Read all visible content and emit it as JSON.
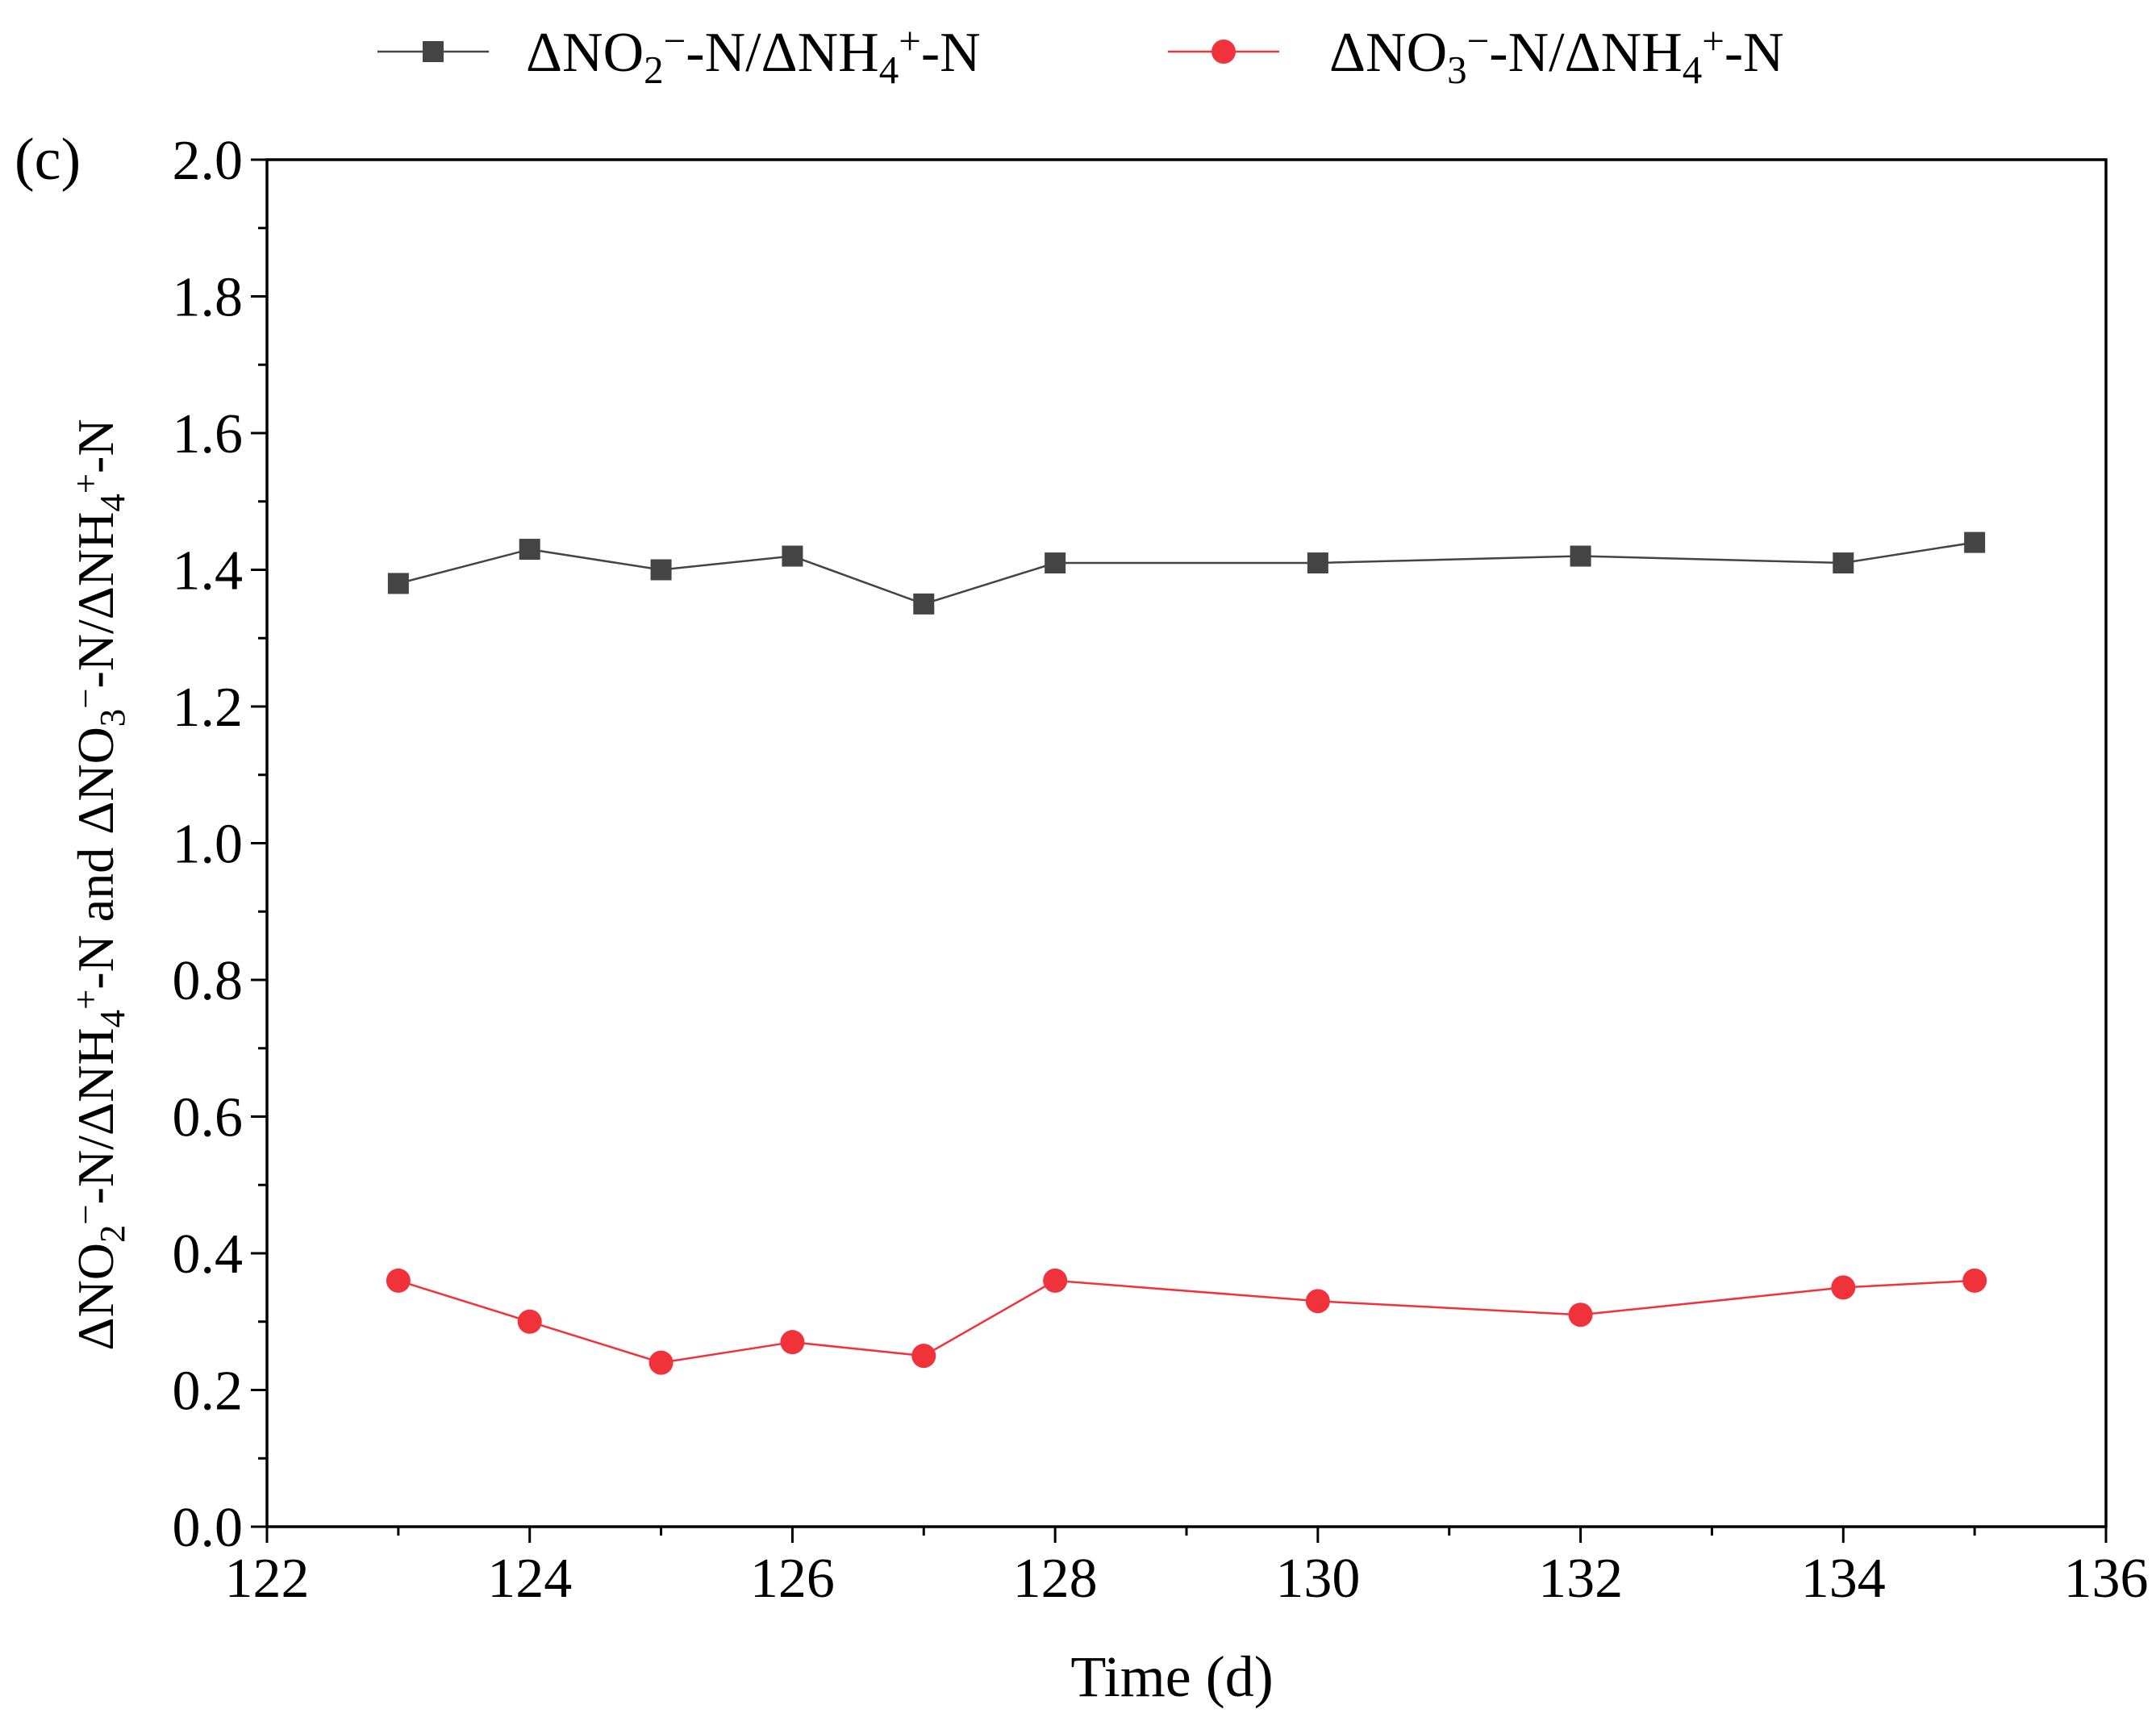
{
  "chart_data": {
    "type": "line",
    "panel_label": "(c)",
    "xlabel": "Time (d)",
    "ylabel": {
      "parts": [
        {
          "t": "ΔNO"
        },
        {
          "t": "2",
          "sub": true
        },
        {
          "t": "−",
          "sup": true
        },
        {
          "t": "-N/ΔNH"
        },
        {
          "t": "4",
          "sub": true
        },
        {
          "t": "+",
          "sup": true
        },
        {
          "t": "-N and ΔNO"
        },
        {
          "t": "3",
          "sub": true
        },
        {
          "t": "−",
          "sup": true
        },
        {
          "t": "-N/ΔNH"
        },
        {
          "t": "4",
          "sub": true
        },
        {
          "t": "+",
          "sup": true
        },
        {
          "t": "-N"
        }
      ]
    },
    "xlim": [
      122,
      136
    ],
    "ylim": [
      0.0,
      2.0
    ],
    "x_ticks": [
      "122",
      "124",
      "126",
      "128",
      "130",
      "132",
      "134",
      "136"
    ],
    "y_ticks": [
      "0.0",
      "0.2",
      "0.4",
      "0.6",
      "0.8",
      "1.0",
      "1.2",
      "1.4",
      "1.6",
      "1.8",
      "2.0"
    ],
    "legend_position": "top, above plot",
    "grid": false,
    "series": [
      {
        "name": "ΔNO2−-N/ΔNH4+-N",
        "legend_parts": [
          {
            "t": "ΔNO"
          },
          {
            "t": "2",
            "sub": true
          },
          {
            "t": "−",
            "sup": true
          },
          {
            "t": "-N/ΔNH"
          },
          {
            "t": "4",
            "sub": true
          },
          {
            "t": "+",
            "sup": true
          },
          {
            "t": "-N"
          }
        ],
        "color": "#444444",
        "marker": "square",
        "x": [
          123,
          124,
          125,
          126,
          127,
          128,
          130,
          132,
          134,
          135
        ],
        "y": [
          1.38,
          1.43,
          1.4,
          1.42,
          1.35,
          1.41,
          1.41,
          1.42,
          1.41,
          1.44
        ]
      },
      {
        "name": "ΔNO3−-N/ΔNH4+-N",
        "legend_parts": [
          {
            "t": "ΔNO"
          },
          {
            "t": "3",
            "sub": true
          },
          {
            "t": "−",
            "sup": true
          },
          {
            "t": "-N/ΔNH"
          },
          {
            "t": "4",
            "sub": true
          },
          {
            "t": "+",
            "sup": true
          },
          {
            "t": "-N"
          }
        ],
        "color": "#f0323a",
        "marker": "circle",
        "x": [
          123,
          124,
          125,
          126,
          127,
          128,
          130,
          132,
          134,
          135
        ],
        "y": [
          0.36,
          0.3,
          0.24,
          0.27,
          0.25,
          0.36,
          0.33,
          0.31,
          0.35,
          0.36
        ]
      }
    ]
  }
}
